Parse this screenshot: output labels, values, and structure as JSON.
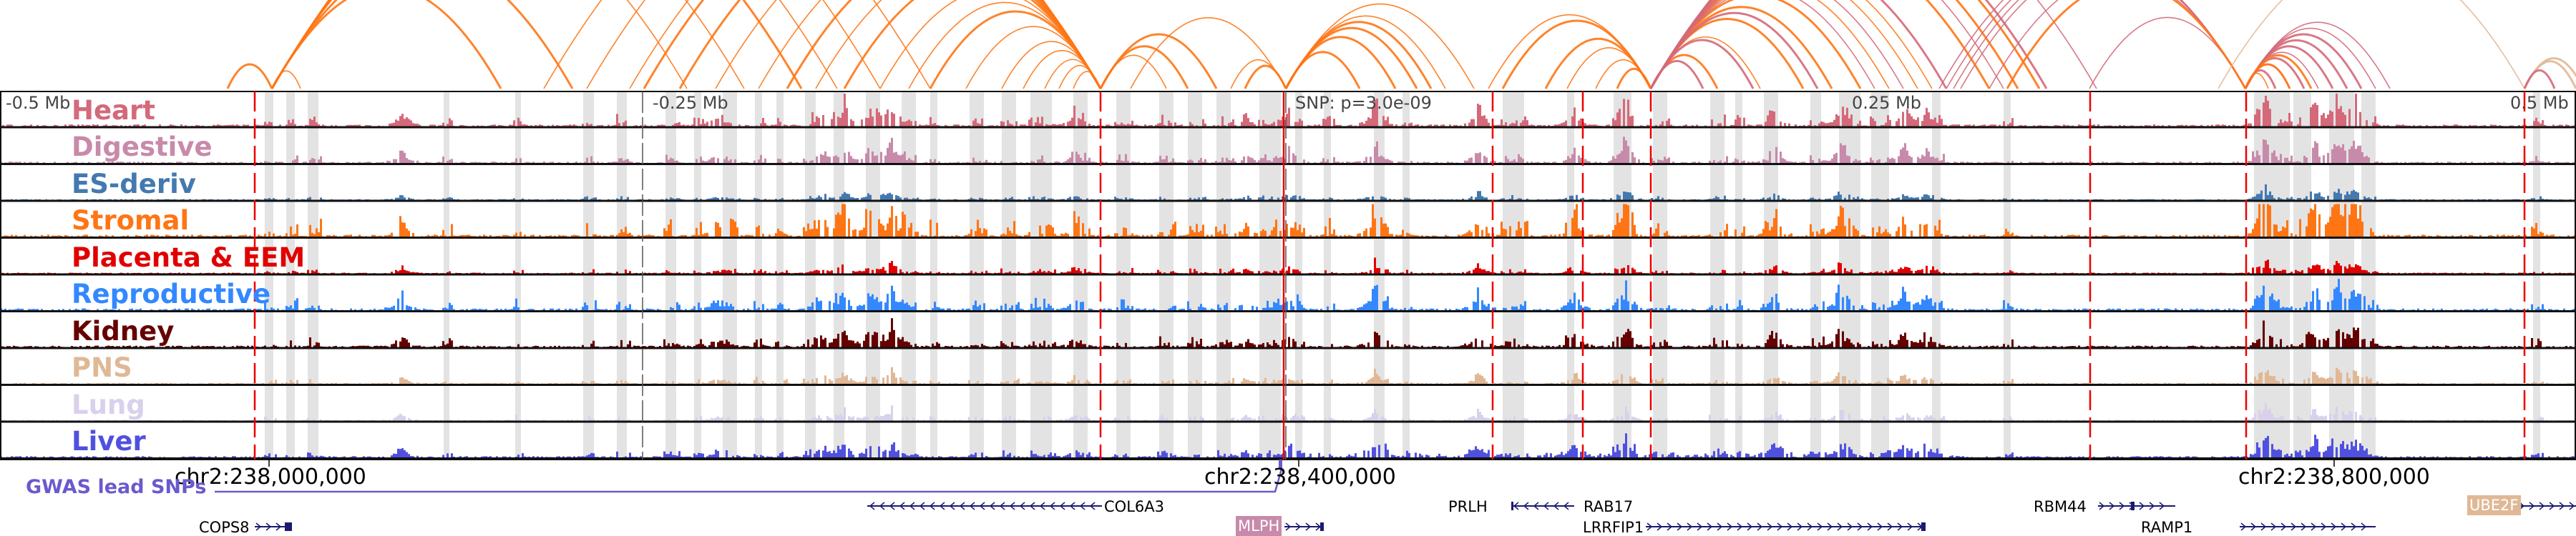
{
  "tracks": [
    {
      "label": "Heart",
      "color": "#d4697a"
    },
    {
      "label": "Digestive",
      "color": "#c88aaa"
    },
    {
      "label": "ES-deriv",
      "color": "#4479b0"
    },
    {
      "label": "Stromal",
      "color": "#ff7514"
    },
    {
      "label": "Placenta & EEM",
      "color": "#e00000"
    },
    {
      "label": "Reproductive",
      "color": "#3388ff"
    },
    {
      "label": "Kidney",
      "color": "#660000"
    },
    {
      "label": "PNS",
      "color": "#e0b896"
    },
    {
      "label": "Lung",
      "color": "#d8d0ec"
    },
    {
      "label": "Liver",
      "color": "#5050e0"
    }
  ],
  "ruler": {
    "minus_half": "-0.5 Mb",
    "minus_quarter": "-0.25 Mb",
    "snp": "SNP: p=3.0e-09",
    "plus_quarter": "0.25 Mb",
    "plus_half": "0.5 Mb"
  },
  "coords": [
    "chr2:238,000,000",
    "chr2:238,400,000",
    "chr2:238,800,000"
  ],
  "gwas_label": "GWAS lead SNPs",
  "genes": {
    "cops8": "COPS8",
    "col6a3": "COL6A3",
    "mlph": "MLPH",
    "prlh": "PRLH",
    "rab17": "RAB17",
    "lrrfip1": "LRRFIP1",
    "rbm44": "RBM44",
    "ramp1": "RAMP1",
    "ube2f": "UBE2F"
  },
  "colors": {
    "gwas": "#6a5acd",
    "gene": "#1a1a6e",
    "highlight": "#e3e3e3",
    "marker": "#ee0000"
  }
}
